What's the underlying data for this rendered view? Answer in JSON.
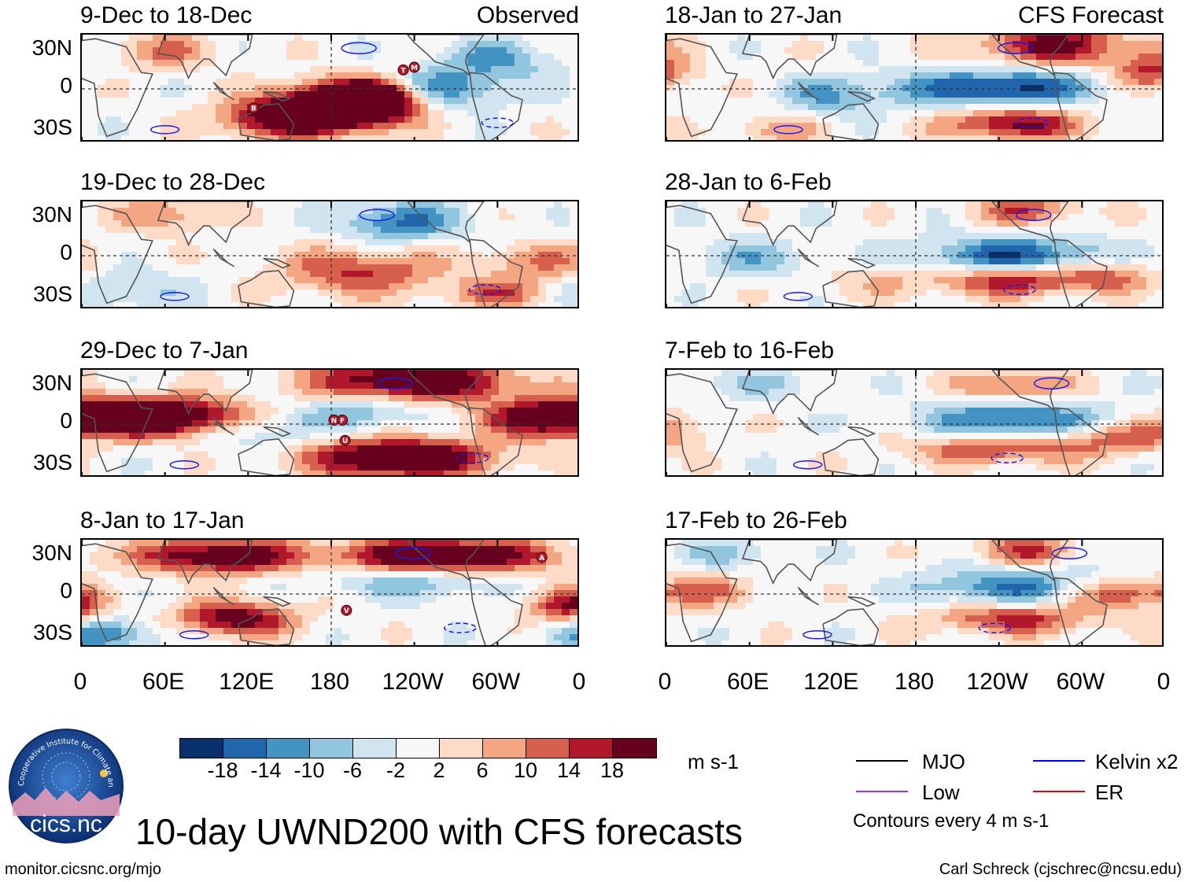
{
  "panels": [
    {
      "title": "9-Dec to 18-Dec",
      "tag": "Observed",
      "theme": 0,
      "markers": [
        {
          "lon": 232,
          "lat": 14,
          "label": "T"
        },
        {
          "lon": 240,
          "lat": 16,
          "label": "M"
        },
        {
          "lon": 124,
          "lat": -14,
          "label": "B"
        }
      ]
    },
    {
      "title": "19-Dec to 28-Dec",
      "tag": "",
      "theme": 1,
      "markers": []
    },
    {
      "title": "29-Dec to 7-Jan",
      "tag": "",
      "theme": 2,
      "markers": [
        {
          "lon": 182,
          "lat": 3,
          "label": "N"
        },
        {
          "lon": 188,
          "lat": 3,
          "label": "F"
        },
        {
          "lon": 190,
          "lat": -12,
          "label": "U"
        }
      ]
    },
    {
      "title": "8-Jan to 17-Jan",
      "tag": "",
      "theme": 3,
      "markers": [
        {
          "lon": 332,
          "lat": 27,
          "label": "A"
        },
        {
          "lon": 191,
          "lat": -12,
          "label": "V"
        }
      ]
    },
    {
      "title": "18-Jan to 27-Jan",
      "tag": "CFS Forecast",
      "theme": 4,
      "markers": []
    },
    {
      "title": "28-Jan to 6-Feb",
      "tag": "",
      "theme": 5,
      "markers": []
    },
    {
      "title": "7-Feb to 16-Feb",
      "tag": "",
      "theme": 6,
      "markers": []
    },
    {
      "title": "17-Feb to 26-Feb",
      "tag": "",
      "theme": 7,
      "markers": []
    }
  ],
  "lat_labels": [
    "30N",
    "0",
    "30S"
  ],
  "lon_labels": [
    "0",
    "60E",
    "120E",
    "180",
    "120W",
    "60W",
    "0"
  ],
  "colorbar": {
    "colors": [
      "#08306b",
      "#2166ac",
      "#4393c3",
      "#92c5de",
      "#d1e5f0",
      "#f7f7f7",
      "#fddbc7",
      "#f4a582",
      "#d6604d",
      "#b2182b",
      "#67001f"
    ],
    "ticks": [
      "-18",
      "-14",
      "-10",
      "-6",
      "-2",
      "2",
      "6",
      "10",
      "14",
      "18"
    ],
    "units": "m s-1"
  },
  "legend": {
    "items": [
      {
        "label": "MJO",
        "color": "#000000"
      },
      {
        "label": "Kelvin x2",
        "color": "#0000ee"
      },
      {
        "label": "Low",
        "color": "#9b30ff"
      },
      {
        "label": "ER",
        "color": "#ee0000"
      }
    ],
    "contours_note": "Contours every 4 m s-1"
  },
  "title": "10-day UWND200 with CFS forecasts",
  "logo": {
    "circle_text": "Cooperative Institute for Climate and Satellites",
    "name": "cics.nc"
  },
  "footer": {
    "left": "monitor.cicsnc.org/mjo",
    "right": "Carl Schreck (cjschrec@ncsu.edu)"
  }
}
